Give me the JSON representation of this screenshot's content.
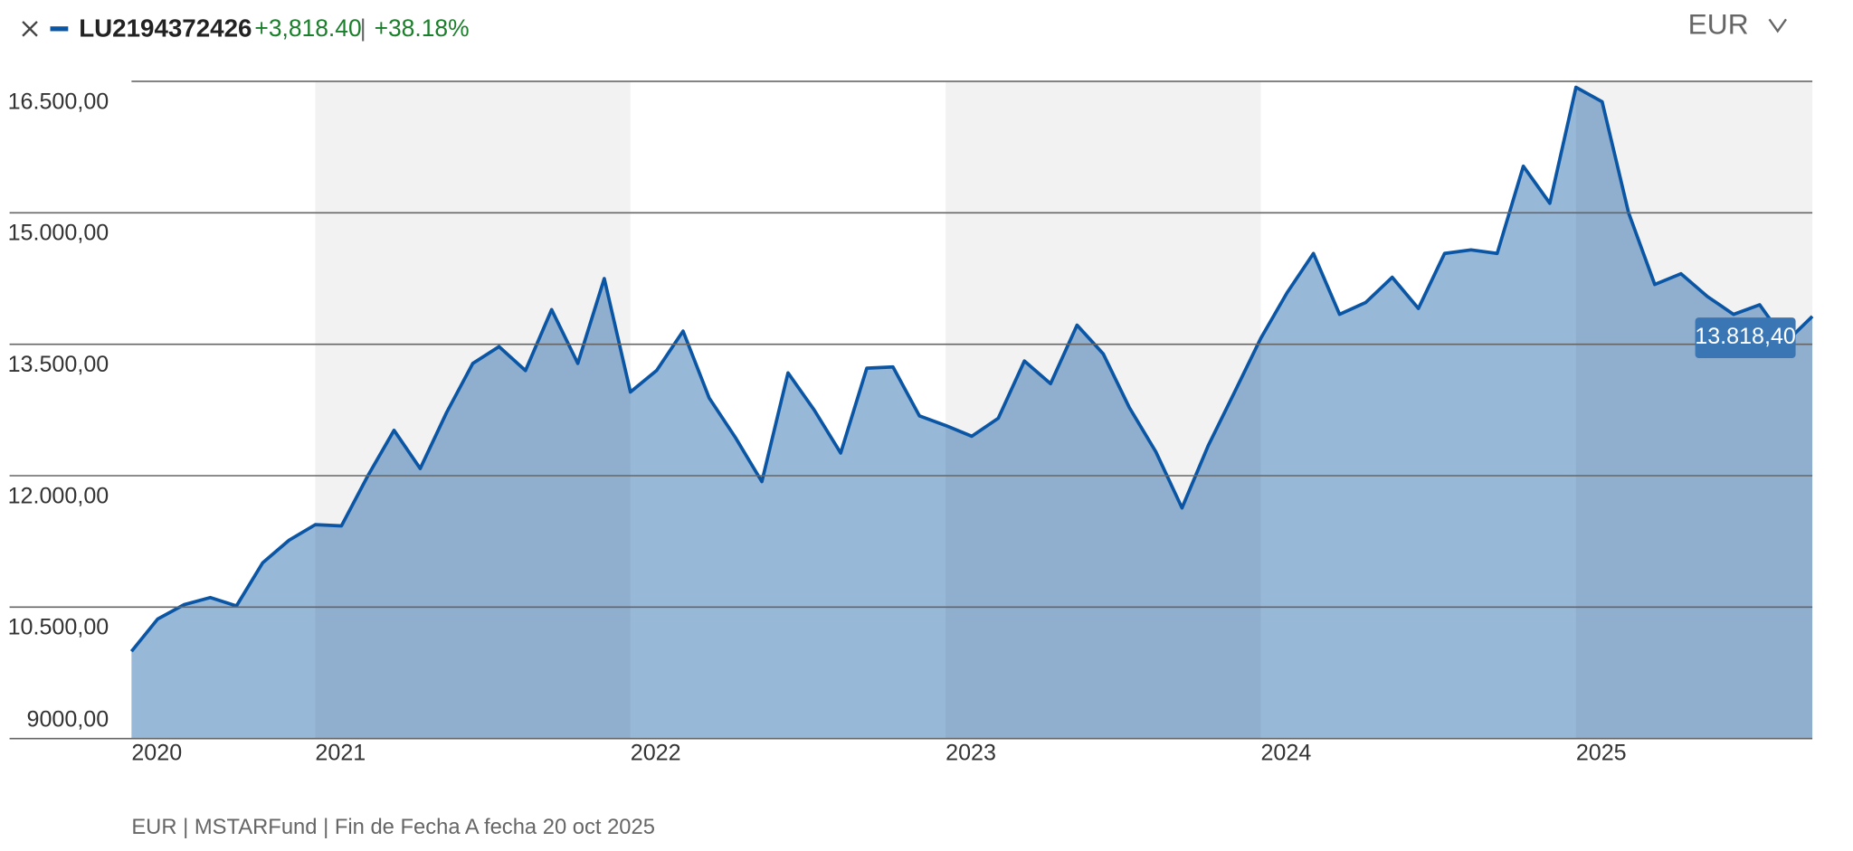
{
  "header": {
    "ticker": "LU2194372426",
    "change": "+3,818.40",
    "separator": "|",
    "change_pct": "+38.18%",
    "currency": "EUR"
  },
  "footnote": "EUR | MSTARFund | Fin de Fecha A fecha 20 oct 2025",
  "chart_data": {
    "type": "area",
    "color": "#0b56a4",
    "fill": "#98b8d8",
    "grid": true,
    "shaded_bands": true,
    "x": [
      2020.417,
      2020.5,
      2020.583,
      2020.667,
      2020.75,
      2020.833,
      2020.917,
      2021.0,
      2021.083,
      2021.167,
      2021.25,
      2021.333,
      2021.417,
      2021.5,
      2021.583,
      2021.667,
      2021.75,
      2021.833,
      2021.917,
      2022.0,
      2022.083,
      2022.167,
      2022.25,
      2022.333,
      2022.417,
      2022.5,
      2022.583,
      2022.667,
      2022.75,
      2022.833,
      2022.917,
      2023.0,
      2023.083,
      2023.167,
      2023.25,
      2023.333,
      2023.417,
      2023.5,
      2023.583,
      2023.667,
      2023.75,
      2023.833,
      2023.917,
      2024.0,
      2024.083,
      2024.167,
      2024.25,
      2024.333,
      2024.417,
      2024.5,
      2024.583,
      2024.667,
      2024.75,
      2024.833,
      2024.917,
      2025.0,
      2025.083,
      2025.167,
      2025.25,
      2025.333,
      2025.417,
      2025.5,
      2025.583,
      2025.667,
      2025.75
    ],
    "values": [
      9995,
      10364,
      10527,
      10609,
      10514,
      11005,
      11264,
      11441,
      11427,
      12000,
      12518,
      12082,
      12723,
      13282,
      13473,
      13200,
      13895,
      13282,
      14250,
      12955,
      13200,
      13650,
      12886,
      12436,
      11932,
      13173,
      12750,
      12259,
      13227,
      13241,
      12682,
      12573,
      12450,
      12655,
      13309,
      13050,
      13718,
      13391,
      12777,
      12273,
      11632,
      12341,
      12955,
      13568,
      14086,
      14536,
      13841,
      13977,
      14264,
      13909,
      14536,
      14577,
      14536,
      15532,
      15109,
      16432,
      16268,
      15000,
      14182,
      14305,
      14045,
      13841,
      13950,
      13527,
      13818.4
    ],
    "value_labels": [
      null,
      null,
      null,
      null,
      null,
      null,
      null,
      null,
      null,
      null,
      null,
      null,
      null,
      null,
      null,
      null,
      null,
      null,
      null,
      null,
      null,
      null,
      null,
      null,
      null,
      null,
      null,
      null,
      null,
      null,
      null,
      null,
      null,
      null,
      null,
      null,
      null,
      null,
      null,
      null,
      null,
      null,
      null,
      null,
      null,
      null,
      null,
      null,
      null,
      null,
      null,
      null,
      null,
      null,
      null,
      null,
      null,
      null,
      null,
      null,
      null,
      null,
      null,
      null,
      "13.818,40"
    ],
    "xlim": [
      2020.417,
      2025.75
    ],
    "xticks": [
      {
        "value": 2020.417,
        "label": "2020"
      },
      2021,
      2022,
      2023,
      2024,
      2025
    ],
    "ylim": [
      9000,
      16500
    ],
    "yticks": [
      {
        "value": 9000,
        "label": "9000,00"
      },
      {
        "value": 10500,
        "label": "10.500,00"
      },
      {
        "value": 12000,
        "label": "12.000,00"
      },
      {
        "value": 13500,
        "label": "13.500,00"
      },
      {
        "value": 15000,
        "label": "15.000,00"
      },
      {
        "value": 16500,
        "label": "16.500,00"
      }
    ]
  }
}
